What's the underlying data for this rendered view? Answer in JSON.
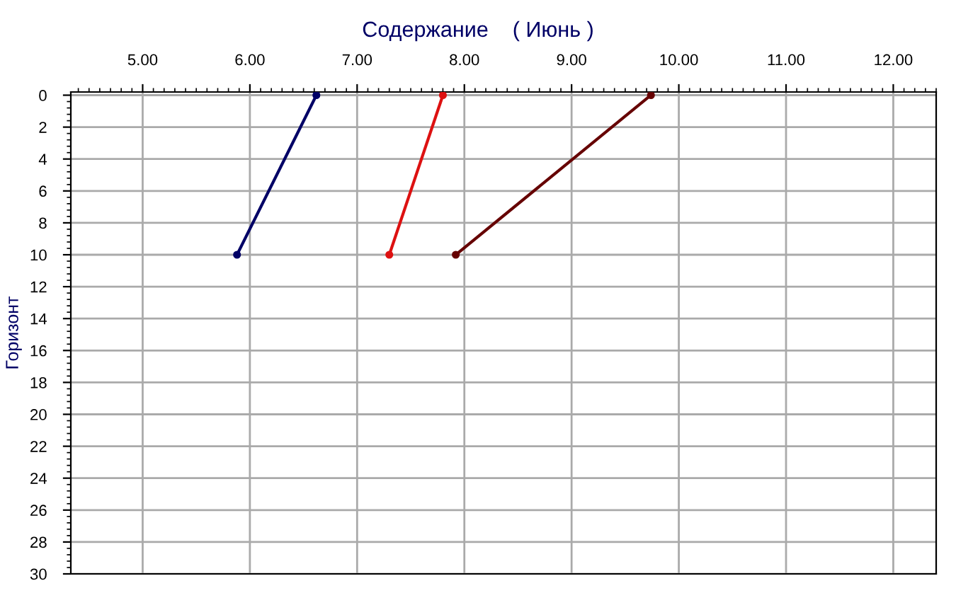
{
  "chart_data": {
    "type": "line",
    "title": "Содержание    ( Июнь )",
    "ylabel": "Горизонт",
    "series": [
      {
        "color": "#000066",
        "x": [
          6.62,
          5.88
        ],
        "values": [
          0,
          10
        ]
      },
      {
        "color": "#dd1111",
        "x": [
          7.8,
          7.3
        ],
        "values": [
          0,
          10
        ]
      },
      {
        "color": "#660000",
        "x": [
          9.74,
          7.92
        ],
        "values": [
          0,
          10
        ]
      }
    ],
    "xlim": [
      4.33,
      12.4
    ],
    "xticks": [
      {
        "value": 5,
        "label": "5.00"
      },
      {
        "value": 6,
        "label": "6.00"
      },
      {
        "value": 7,
        "label": "7.00"
      },
      {
        "value": 8,
        "label": "8.00"
      },
      {
        "value": 9,
        "label": "9.00"
      },
      {
        "value": 10,
        "label": "10.00"
      },
      {
        "value": 11,
        "label": "11.00"
      },
      {
        "value": 12,
        "label": "12.00"
      }
    ],
    "ylim": [
      30,
      -0.2
    ],
    "yticks": [
      0,
      2,
      4,
      6,
      8,
      10,
      12,
      14,
      16,
      18,
      20,
      22,
      24,
      26,
      28,
      30
    ],
    "grid": true,
    "marker": "circle",
    "line_style": "solid"
  }
}
